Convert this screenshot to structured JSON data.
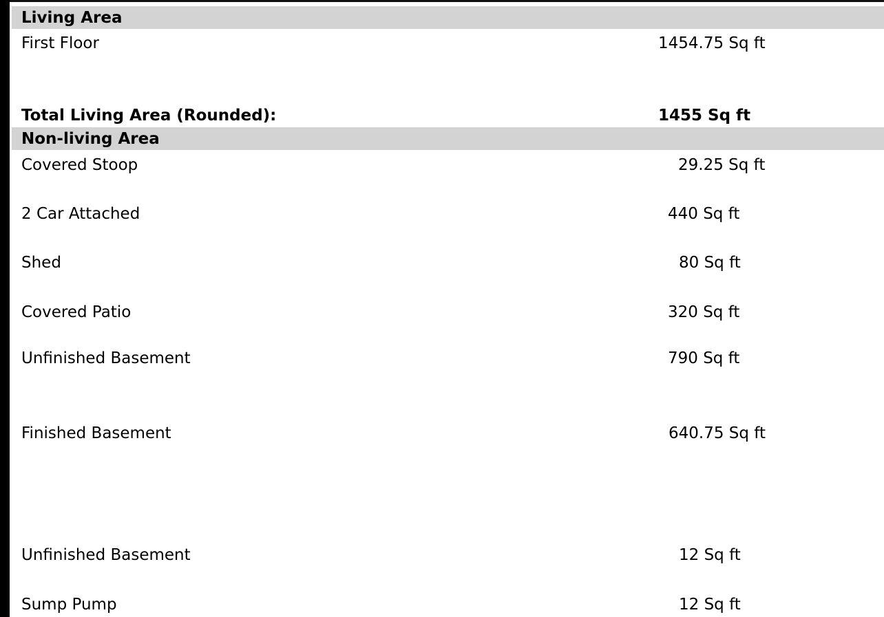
{
  "living_area": {
    "header": "Living Area",
    "rows": [
      {
        "label": "First Floor",
        "value": "1454.75 Sq ft"
      }
    ],
    "total_label": "Total Living Area (Rounded):",
    "total_value": "1455 Sq ft"
  },
  "non_living_area": {
    "header": "Non-living Area",
    "rows": [
      {
        "label": "Covered Stoop",
        "value": "29.25 Sq ft"
      },
      {
        "label": "2 Car Attached",
        "value": "440 Sq ft"
      },
      {
        "label": "Shed",
        "value": "80 Sq ft"
      },
      {
        "label": "Covered Patio",
        "value": "320 Sq ft"
      },
      {
        "label": "Unfinished Basement",
        "value": "790 Sq ft"
      },
      {
        "label": "Finished Basement",
        "value": "640.75 Sq ft"
      },
      {
        "label": "Unfinished Basement",
        "value": "12 Sq ft"
      },
      {
        "label": "Sump Pump",
        "value": "12 Sq ft"
      }
    ]
  }
}
